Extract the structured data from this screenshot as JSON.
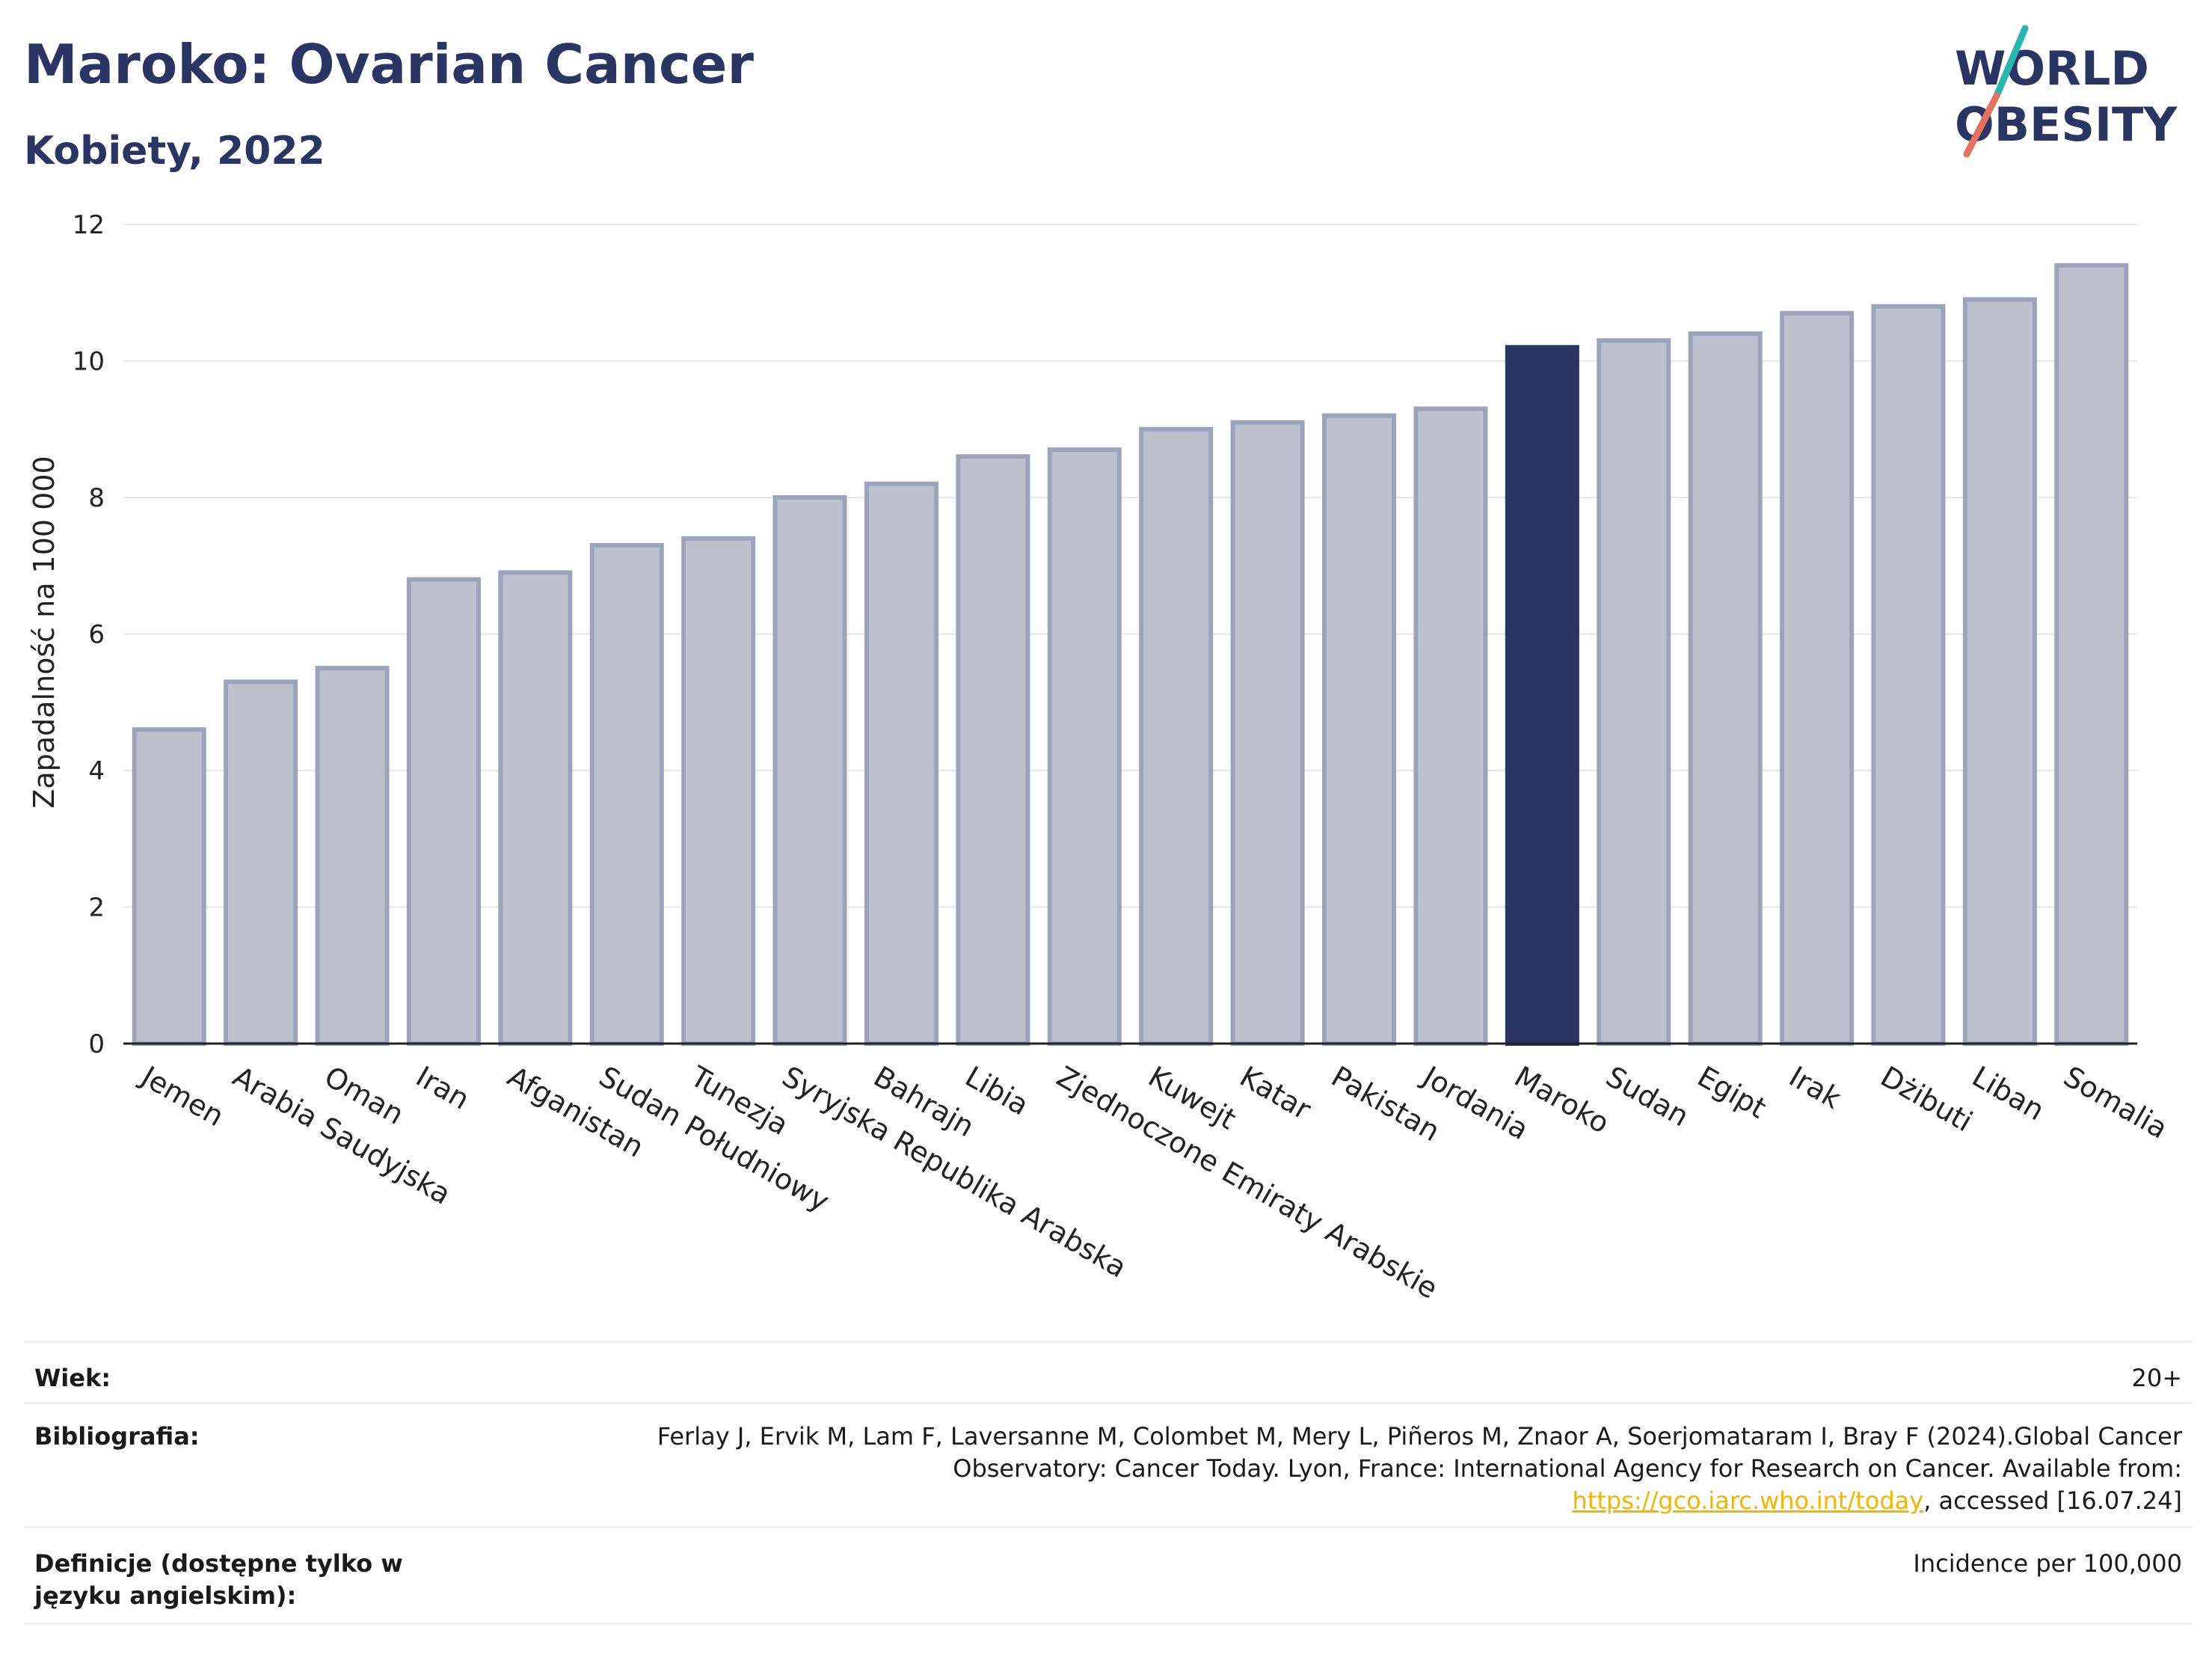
{
  "header": {
    "title": "Maroko: Ovarian Cancer",
    "subtitle": "Kobiety, 2022",
    "logo_line1": "WORLD",
    "logo_line2": "OBESITY"
  },
  "colors": {
    "title": "#2b3563",
    "bar_default": "#bcc1d0",
    "bar_default_border": "#9da4ba",
    "bar_highlight": "#2b3563",
    "grid": "#e6e6ec",
    "logo_teal": "#2bb5b0",
    "logo_coral": "#e8705f",
    "link": "#f2b500"
  },
  "chart_data": {
    "type": "bar",
    "title": "Maroko: Ovarian Cancer",
    "ylabel": "Zapadalność na 100 000",
    "xlabel": "",
    "ylim": [
      0,
      12
    ],
    "yticks": [
      0,
      2,
      4,
      6,
      8,
      10,
      12
    ],
    "grid": true,
    "highlight": "Maroko",
    "categories": [
      "Jemen",
      "Arabia Saudyjska",
      "Oman",
      "Iran",
      "Afganistan",
      "Sudan Południowy",
      "Tunezja",
      "Syryjska Republika Arabska",
      "Bahrajn",
      "Libia",
      "Zjednoczone Emiraty Arabskie",
      "Kuwejt",
      "Katar",
      "Pakistan",
      "Jordania",
      "Maroko",
      "Sudan",
      "Egipt",
      "Irak",
      "Dżibuti",
      "Liban",
      "Somalia"
    ],
    "values": [
      4.6,
      5.3,
      5.5,
      6.8,
      6.9,
      7.3,
      7.4,
      8.0,
      8.2,
      8.6,
      8.7,
      9.0,
      9.1,
      9.2,
      9.3,
      10.2,
      10.3,
      10.4,
      10.7,
      10.8,
      10.9,
      11.4
    ]
  },
  "footer": {
    "age_label": "Wiek:",
    "age_value": "20+",
    "bib_label": "Bibliografia:",
    "bib_text_before": "Ferlay J, Ervik M, Lam F, Laversanne M, Colombet M, Mery L, Piñeros M, Znaor A, Soerjomataram I, Bray F (2024).Global Cancer Observatory: Cancer Today. Lyon, France: International Agency for Research on Cancer. Available from: ",
    "bib_link": "https://gco.iarc.who.int/today",
    "bib_text_after": ", accessed [16.07.24]",
    "def_label": "Definicje (dostępne tylko w języku angielskim):",
    "def_value": "Incidence per 100,000"
  }
}
